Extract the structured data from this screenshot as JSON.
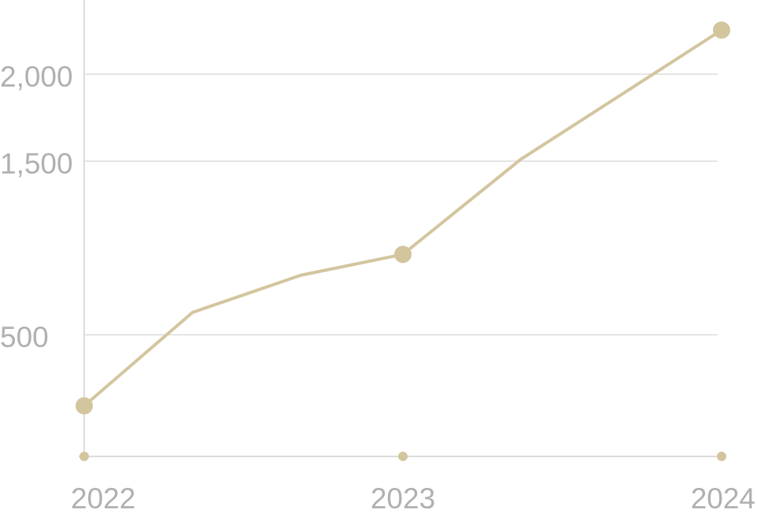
{
  "chart_data": {
    "type": "line",
    "x": [
      2022,
      2022.34,
      2022.68,
      2023,
      2023.37,
      2024
    ],
    "series": [
      {
        "color": "#d3c59e",
        "values": [
          91,
          629,
          843,
          963,
          1510,
          2254
        ]
      }
    ],
    "xlim": [
      2022,
      2024
    ],
    "xticks": [
      2022,
      2023,
      2024
    ],
    "ylim": [
      -200,
      2400
    ],
    "yticks": [
      {
        "value": 500,
        "label": "500"
      },
      {
        "value": 1500,
        "label": "1,500"
      },
      {
        "value": 2000,
        "label": "2,000"
      }
    ],
    "grid": true
  }
}
